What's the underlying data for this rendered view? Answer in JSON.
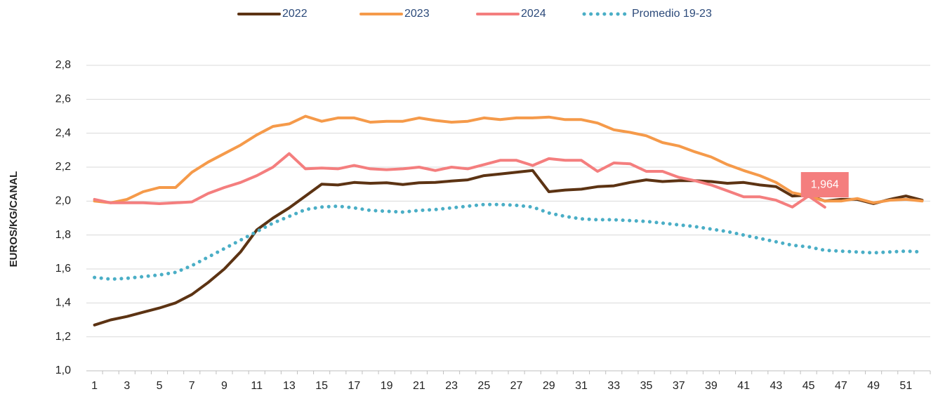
{
  "chart_data": {
    "type": "line",
    "y_label": "EUROS/KG/CANAL",
    "x": [
      1,
      2,
      3,
      4,
      5,
      6,
      7,
      8,
      9,
      10,
      11,
      12,
      13,
      14,
      15,
      16,
      17,
      18,
      19,
      20,
      21,
      22,
      23,
      24,
      25,
      26,
      27,
      28,
      29,
      30,
      31,
      32,
      33,
      34,
      35,
      36,
      37,
      38,
      39,
      40,
      41,
      42,
      43,
      44,
      45,
      46,
      47,
      48,
      49,
      50,
      51,
      52
    ],
    "xlim": [
      0.5,
      52.5
    ],
    "xticks": [
      1,
      3,
      5,
      7,
      9,
      11,
      13,
      15,
      17,
      19,
      21,
      23,
      25,
      27,
      29,
      31,
      33,
      35,
      37,
      39,
      41,
      43,
      45,
      47,
      49,
      51
    ],
    "ylim": [
      1.0,
      2.8
    ],
    "yticks": [
      {
        "value": 1.0,
        "label": "1,0"
      },
      {
        "value": 1.2,
        "label": "1,2"
      },
      {
        "value": 1.4,
        "label": "1,4"
      },
      {
        "value": 1.6,
        "label": "1,6"
      },
      {
        "value": 1.8,
        "label": "1,8"
      },
      {
        "value": 2.0,
        "label": "2,0"
      },
      {
        "value": 2.2,
        "label": "2,2"
      },
      {
        "value": 2.4,
        "label": "2,4"
      },
      {
        "value": 2.6,
        "label": "2,6"
      },
      {
        "value": 2.8,
        "label": "2,8"
      }
    ],
    "grid": true,
    "legend": "top",
    "series": [
      {
        "name": "2022",
        "color": "#5c3313",
        "style": "solid",
        "values": [
          1.27,
          1.3,
          1.32,
          1.345,
          1.37,
          1.4,
          1.45,
          1.52,
          1.6,
          1.7,
          1.83,
          1.9,
          1.96,
          2.03,
          2.1,
          2.095,
          2.11,
          2.105,
          2.108,
          2.098,
          2.108,
          2.11,
          2.118,
          2.125,
          2.15,
          2.16,
          2.17,
          2.18,
          2.055,
          2.065,
          2.07,
          2.085,
          2.09,
          2.11,
          2.125,
          2.115,
          2.12,
          2.12,
          2.115,
          2.105,
          2.11,
          2.095,
          2.085,
          2.03,
          2.035,
          2.0,
          2.01,
          2.01,
          1.985,
          2.01,
          2.03,
          2.005
        ]
      },
      {
        "name": "2023",
        "color": "#f59a4a",
        "style": "solid",
        "values": [
          2.0,
          1.99,
          2.01,
          2.055,
          2.08,
          2.08,
          2.17,
          2.23,
          2.28,
          2.33,
          2.39,
          2.44,
          2.455,
          2.5,
          2.47,
          2.49,
          2.49,
          2.465,
          2.47,
          2.47,
          2.49,
          2.475,
          2.465,
          2.47,
          2.49,
          2.48,
          2.49,
          2.49,
          2.495,
          2.48,
          2.48,
          2.46,
          2.42,
          2.405,
          2.385,
          2.345,
          2.325,
          2.29,
          2.26,
          2.215,
          2.18,
          2.15,
          2.11,
          2.05,
          2.03,
          2.0,
          2.0,
          2.015,
          1.99,
          2.005,
          2.01,
          2.0
        ]
      },
      {
        "name": "2024",
        "color": "#f47e7e",
        "style": "solid",
        "values": [
          2.01,
          1.99,
          1.99,
          1.99,
          1.985,
          1.99,
          1.995,
          2.045,
          2.08,
          2.11,
          2.15,
          2.2,
          2.28,
          2.19,
          2.195,
          2.19,
          2.21,
          2.19,
          2.185,
          2.19,
          2.2,
          2.18,
          2.2,
          2.19,
          2.215,
          2.24,
          2.24,
          2.21,
          2.25,
          2.24,
          2.24,
          2.175,
          2.225,
          2.22,
          2.175,
          2.175,
          2.14,
          2.12,
          2.095,
          2.06,
          2.025,
          2.025,
          2.005,
          1.965,
          2.03,
          1.964,
          null,
          null,
          null,
          null,
          null,
          null
        ],
        "value_labels": [
          null,
          null,
          null,
          null,
          null,
          null,
          null,
          null,
          null,
          null,
          null,
          null,
          null,
          null,
          null,
          null,
          null,
          null,
          null,
          null,
          null,
          null,
          null,
          null,
          null,
          null,
          null,
          null,
          null,
          null,
          null,
          null,
          null,
          null,
          null,
          null,
          null,
          null,
          null,
          null,
          null,
          null,
          null,
          null,
          null,
          "1,964",
          null,
          null,
          null,
          null,
          null,
          null
        ]
      },
      {
        "name": "Promedio 19-23",
        "color": "#4aaec6",
        "style": "dotted",
        "values": [
          1.55,
          1.54,
          1.545,
          1.555,
          1.565,
          1.58,
          1.62,
          1.67,
          1.72,
          1.77,
          1.82,
          1.87,
          1.91,
          1.95,
          1.965,
          1.97,
          1.96,
          1.945,
          1.94,
          1.935,
          1.945,
          1.95,
          1.96,
          1.97,
          1.98,
          1.98,
          1.975,
          1.965,
          1.93,
          1.91,
          1.895,
          1.89,
          1.89,
          1.885,
          1.88,
          1.87,
          1.86,
          1.85,
          1.835,
          1.82,
          1.8,
          1.78,
          1.76,
          1.74,
          1.73,
          1.71,
          1.705,
          1.7,
          1.695,
          1.7,
          1.705,
          1.7
        ]
      }
    ]
  }
}
